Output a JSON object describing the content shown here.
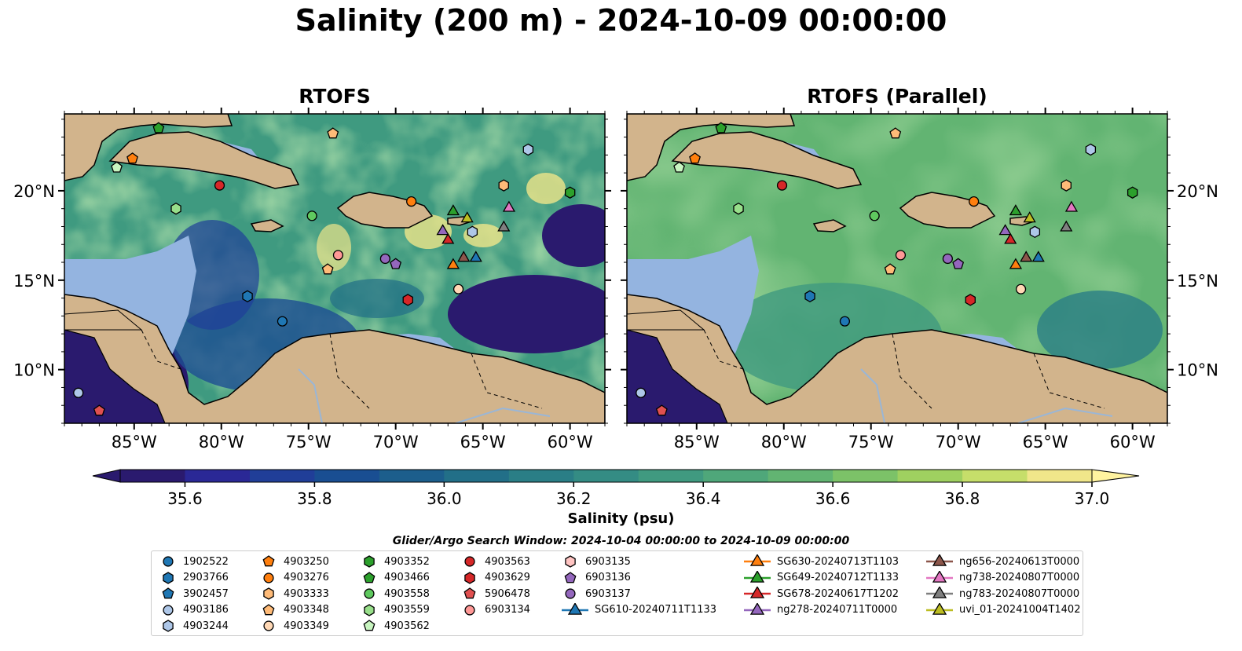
{
  "title": "Salinity (200 m) - 2024-10-09 00:00:00",
  "panels": [
    {
      "title": "RTOFS"
    },
    {
      "title": "RTOFS (Parallel)"
    }
  ],
  "colors": {
    "ocean_deep": "#2a1a6e",
    "shelf": "#94b4e0",
    "land": "#d2b48c",
    "coast": "#000000"
  },
  "map": {
    "lon_range": [
      -89,
      -58
    ],
    "lat_range": [
      7,
      24.3
    ],
    "lon_ticks": [
      -85,
      -80,
      -75,
      -70,
      -65,
      -60
    ],
    "lon_tick_labels": [
      "85°W",
      "80°W",
      "75°W",
      "70°W",
      "65°W",
      "60°W"
    ],
    "lat_ticks": [
      10,
      15,
      20
    ],
    "lat_tick_labels": [
      "10°N",
      "15°N",
      "20°N"
    ]
  },
  "colorbar": {
    "label": "Salinity (psu)",
    "min": 35.5,
    "max": 37.0,
    "ticks": [
      35.6,
      35.8,
      36.0,
      36.2,
      36.4,
      36.6,
      36.8,
      37.0
    ],
    "tick_labels": [
      "35.6",
      "35.8",
      "36.0",
      "36.2",
      "36.4",
      "36.6",
      "36.8",
      "37.0"
    ],
    "colors": [
      "#2a1a6e",
      "#2a2896",
      "#203e98",
      "#194e92",
      "#1c5e8c",
      "#226f88",
      "#2a7e86",
      "#348c84",
      "#409a80",
      "#4fa77a",
      "#62b472",
      "#7cc268",
      "#9fd060",
      "#c6de6a",
      "#f0e68a"
    ]
  },
  "search_window": "Glider/Argo Search Window: 2024-10-04 00:00:00 to 2024-10-09 00:00:00",
  "legend": [
    {
      "label": "1902522",
      "shape": "circle",
      "color": "#1f77b4"
    },
    {
      "label": "2903766",
      "shape": "hexagon",
      "color": "#1f77b4"
    },
    {
      "label": "3902457",
      "shape": "pentagon",
      "color": "#1f77b4"
    },
    {
      "label": "4903186",
      "shape": "circle",
      "color": "#aec7e8"
    },
    {
      "label": "4903244",
      "shape": "hexagon",
      "color": "#aec7e8"
    },
    {
      "label": "4903250",
      "shape": "pentagon",
      "color": "#ff7f0e"
    },
    {
      "label": "4903276",
      "shape": "circle",
      "color": "#ff7f0e"
    },
    {
      "label": "4903333",
      "shape": "hexagon",
      "color": "#ffbb78"
    },
    {
      "label": "4903348",
      "shape": "pentagon",
      "color": "#ffbb78"
    },
    {
      "label": "4903349",
      "shape": "circle",
      "color": "#ffd8b5"
    },
    {
      "label": "4903352",
      "shape": "hexagon",
      "color": "#2ca02c"
    },
    {
      "label": "4903466",
      "shape": "pentagon",
      "color": "#2ca02c"
    },
    {
      "label": "4903558",
      "shape": "circle",
      "color": "#5fc95f"
    },
    {
      "label": "4903559",
      "shape": "hexagon",
      "color": "#98df8a"
    },
    {
      "label": "4903562",
      "shape": "pentagon",
      "color": "#c8f5c0"
    },
    {
      "label": "4903563",
      "shape": "circle",
      "color": "#d62728"
    },
    {
      "label": "4903629",
      "shape": "hexagon",
      "color": "#d62728"
    },
    {
      "label": "5906478",
      "shape": "pentagon",
      "color": "#e05050"
    },
    {
      "label": "6903134",
      "shape": "circle",
      "color": "#ff9896"
    },
    {
      "label": "6903135",
      "shape": "hexagon",
      "color": "#ffc4c2"
    },
    {
      "label": "6903136",
      "shape": "pentagon",
      "color": "#9467bd"
    },
    {
      "label": "6903137",
      "shape": "circle",
      "color": "#9467bd"
    },
    {
      "label": "SG610-20240711T1133",
      "shape": "triangle-line",
      "color": "#1f77b4"
    },
    {
      "label": "SG630-20240713T1103",
      "shape": "triangle-line",
      "color": "#ff7f0e"
    },
    {
      "label": "SG649-20240712T1133",
      "shape": "triangle-line",
      "color": "#2ca02c"
    },
    {
      "label": "SG678-20240617T1202",
      "shape": "triangle-line",
      "color": "#d62728"
    },
    {
      "label": "ng278-20240711T0000",
      "shape": "triangle-line",
      "color": "#9467bd"
    },
    {
      "label": "ng656-20240613T0000",
      "shape": "triangle-line",
      "color": "#8c564b"
    },
    {
      "label": "ng738-20240807T0000",
      "shape": "triangle-line",
      "color": "#e377c2"
    },
    {
      "label": "ng783-20240807T0000",
      "shape": "triangle-line",
      "color": "#7f7f7f"
    },
    {
      "label": "uvi_01-20241004T1402",
      "shape": "triangle-line",
      "color": "#bcbd22"
    }
  ],
  "markers": [
    {
      "lon": -80.1,
      "lat": 20.3,
      "shape": "circle",
      "color": "#d62728"
    },
    {
      "lon": -85.1,
      "lat": 21.8,
      "shape": "pentagon",
      "color": "#ff7f0e"
    },
    {
      "lon": -86.0,
      "lat": 21.3,
      "shape": "pentagon",
      "color": "#c8f5c0"
    },
    {
      "lon": -83.6,
      "lat": 23.5,
      "shape": "pentagon",
      "color": "#2ca02c"
    },
    {
      "lon": -73.6,
      "lat": 23.2,
      "shape": "pentagon",
      "color": "#ffbb78"
    },
    {
      "lon": -62.4,
      "lat": 22.3,
      "shape": "hexagon",
      "color": "#aec7e8"
    },
    {
      "lon": -63.8,
      "lat": 20.3,
      "shape": "hexagon",
      "color": "#ffbb78"
    },
    {
      "lon": -60.0,
      "lat": 19.9,
      "shape": "hexagon",
      "color": "#2ca02c"
    },
    {
      "lon": -82.6,
      "lat": 19.0,
      "shape": "hexagon",
      "color": "#98df8a"
    },
    {
      "lon": -74.8,
      "lat": 18.6,
      "shape": "circle",
      "color": "#5fc95f"
    },
    {
      "lon": -69.1,
      "lat": 19.4,
      "shape": "circle",
      "color": "#ff7f0e"
    },
    {
      "lon": -73.3,
      "lat": 16.4,
      "shape": "circle",
      "color": "#ff9896"
    },
    {
      "lon": -73.9,
      "lat": 15.6,
      "shape": "pentagon",
      "color": "#ffbb78"
    },
    {
      "lon": -70.6,
      "lat": 16.2,
      "shape": "circle",
      "color": "#9467bd"
    },
    {
      "lon": -70.0,
      "lat": 15.9,
      "shape": "pentagon",
      "color": "#9467bd"
    },
    {
      "lon": -78.5,
      "lat": 14.1,
      "shape": "hexagon",
      "color": "#1f77b4"
    },
    {
      "lon": -76.5,
      "lat": 12.7,
      "shape": "circle",
      "color": "#1f77b4"
    },
    {
      "lon": -69.3,
      "lat": 13.9,
      "shape": "hexagon",
      "color": "#d62728"
    },
    {
      "lon": -66.4,
      "lat": 14.5,
      "shape": "circle",
      "color": "#ffd8b5"
    },
    {
      "lon": -65.6,
      "lat": 17.7,
      "shape": "hexagon",
      "color": "#aec7e8"
    },
    {
      "lon": -88.2,
      "lat": 8.7,
      "shape": "circle",
      "color": "#aec7e8"
    },
    {
      "lon": -87.0,
      "lat": 7.7,
      "shape": "pentagon",
      "color": "#e05050"
    },
    {
      "lon": -66.7,
      "lat": 18.9,
      "shape": "triangle",
      "color": "#2ca02c"
    },
    {
      "lon": -65.9,
      "lat": 18.5,
      "shape": "triangle",
      "color": "#bcbd22"
    },
    {
      "lon": -63.5,
      "lat": 19.1,
      "shape": "triangle",
      "color": "#e377c2"
    },
    {
      "lon": -63.8,
      "lat": 18.0,
      "shape": "triangle",
      "color": "#7f7f7f"
    },
    {
      "lon": -67.3,
      "lat": 17.8,
      "shape": "triangle",
      "color": "#9467bd"
    },
    {
      "lon": -67.0,
      "lat": 17.3,
      "shape": "triangle",
      "color": "#d62728"
    },
    {
      "lon": -66.1,
      "lat": 16.3,
      "shape": "triangle",
      "color": "#8c564b"
    },
    {
      "lon": -65.4,
      "lat": 16.3,
      "shape": "triangle",
      "color": "#1f77b4"
    },
    {
      "lon": -66.7,
      "lat": 15.9,
      "shape": "triangle",
      "color": "#ff7f0e"
    }
  ]
}
